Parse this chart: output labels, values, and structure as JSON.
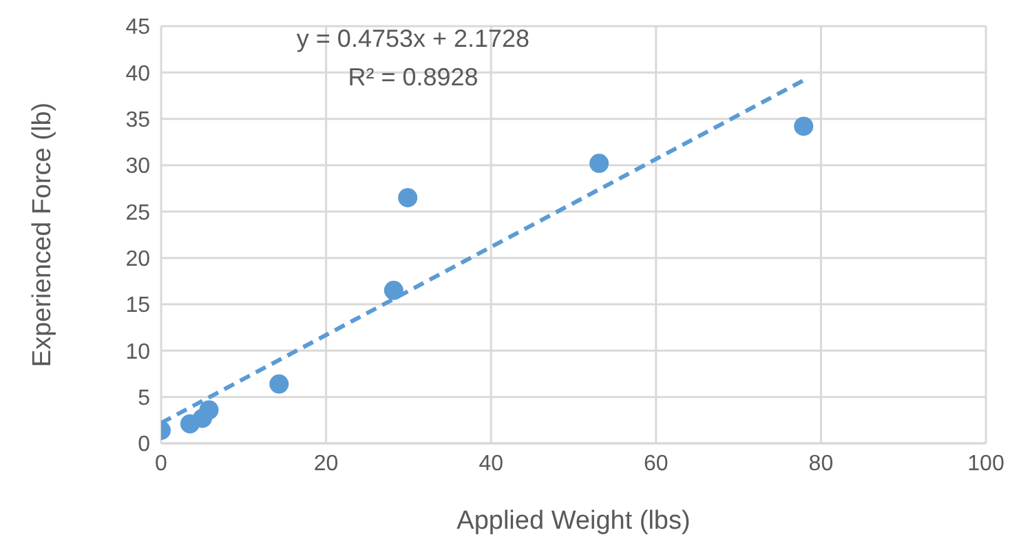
{
  "chart_data": {
    "type": "scatter",
    "xlabel": "Applied Weight (lbs)",
    "ylabel": "Experienced Force (lb)",
    "xlim": [
      0,
      100
    ],
    "xticks": [
      0,
      20,
      40,
      60,
      80,
      100
    ],
    "ylim": [
      0,
      45
    ],
    "yticks": [
      0,
      5,
      10,
      15,
      20,
      25,
      30,
      35,
      40,
      45
    ],
    "grid": true,
    "marker": "circle",
    "annotations": [
      "y = 0.4753x + 2.1728",
      "R² = 0.8928"
    ],
    "series": [
      {
        "color": "#5b9bd5",
        "x": [
          0,
          3.5,
          5,
          5.8,
          14.3,
          28.2,
          29.9,
          53.1,
          77.9
        ],
        "values": [
          1.4,
          2.1,
          2.7,
          3.6,
          6.4,
          16.5,
          26.5,
          30.2,
          34.2
        ]
      },
      {
        "type": "line",
        "color": "#5b9bd5",
        "line_style": "dashed",
        "marker": "none",
        "x": [
          0,
          78.2
        ],
        "values": [
          2.2,
          39.3
        ]
      }
    ]
  }
}
